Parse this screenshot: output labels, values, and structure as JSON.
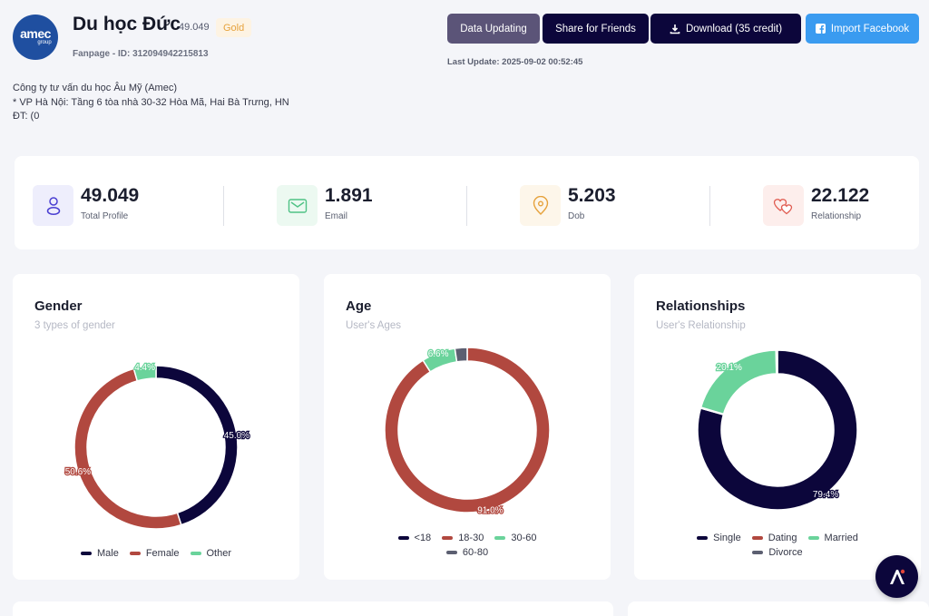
{
  "header": {
    "page_name": "Du học Đức",
    "count": "49.049",
    "tier": "Gold",
    "fanpage_id": "Fanpage - ID: 312094942215813",
    "logo_text": "amec",
    "logo_sub": "group",
    "description": [
      "Công ty tư vấn du học Âu Mỹ (Amec)",
      "* VP Hà Nội: Tầng 6 tòa nhà 30-32 Hòa Mã, Hai Bà Trưng, HN",
      "ĐT: (0"
    ]
  },
  "actions": {
    "data_updating": "Data Updating",
    "share": "Share for Friends",
    "download": "Download (35 credit)",
    "import_facebook": "Import Facebook",
    "last_update": "Last Update: 2025-09-02 00:52:45"
  },
  "stats": [
    {
      "value": "49.049",
      "label": "Total Profile",
      "icon": "user-icon"
    },
    {
      "value": "1.891",
      "label": "Email",
      "icon": "mail-icon"
    },
    {
      "value": "5.203",
      "label": "Dob",
      "icon": "location-icon"
    },
    {
      "value": "22.122",
      "label": "Relationship",
      "icon": "hearts-icon"
    }
  ],
  "colors": {
    "navy": "#0c063b",
    "red": "#b1483f",
    "green": "#6ad39b",
    "gray": "#5c5f71",
    "accent_blue": "#3a9bf0",
    "gold": "#e6a23c"
  },
  "chart_data": [
    {
      "type": "pie",
      "title": "Gender",
      "subtitle": "3 types of gender",
      "categories": [
        "Male",
        "Female",
        "Other"
      ],
      "values": [
        45.0,
        50.6,
        4.4
      ],
      "labels": [
        "45.0%",
        "50.6%",
        "4.4%"
      ],
      "colors": [
        "#0c063b",
        "#b1483f",
        "#6ad39b"
      ],
      "legend": "bottom"
    },
    {
      "type": "pie",
      "title": "Age",
      "subtitle": "User's Ages",
      "categories": [
        "<18",
        "18-30",
        "30-60",
        "60-80"
      ],
      "values": [
        0,
        91.0,
        6.6,
        2.4
      ],
      "labels": [
        "",
        "91.0%",
        "6.6%",
        ""
      ],
      "colors": [
        "#0c063b",
        "#b1483f",
        "#6ad39b",
        "#5c5f71"
      ],
      "legend": "bottom"
    },
    {
      "type": "pie",
      "title": "Relationships",
      "subtitle": "User's Relationship",
      "categories": [
        "Single",
        "Dating",
        "Married",
        "Divorce"
      ],
      "values": [
        79.4,
        0.2,
        20.1,
        0.3
      ],
      "labels": [
        "79.4%",
        "",
        "20.1%",
        ""
      ],
      "colors": [
        "#0c063b",
        "#b1483f",
        "#6ad39b",
        "#5c5f71"
      ],
      "legend": "bottom"
    }
  ]
}
